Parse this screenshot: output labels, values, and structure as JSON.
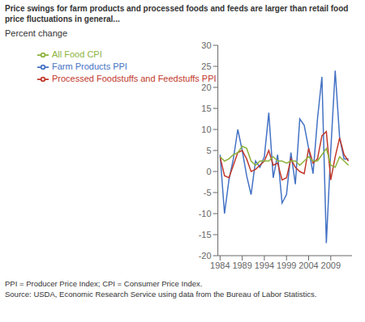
{
  "chart_data": {
    "type": "line",
    "title": "Price swings for farm products and processed foods and feeds are larger than retail food",
    "subtitle": "price fluctuations in general...",
    "y_label": "Percent change",
    "annotations": [
      "PPI = Producer Price Index; CPI = Consumer Price Index.",
      "Source: USDA, Economic Research Service using data from the Bureau of Labor Statistics."
    ],
    "x": [
      1984,
      1985,
      1986,
      1987,
      1988,
      1989,
      1990,
      1991,
      1992,
      1993,
      1994,
      1995,
      1996,
      1997,
      1998,
      1999,
      2000,
      2001,
      2002,
      2003,
      2004,
      2005,
      2006,
      2007,
      2008,
      2009,
      2010,
      2011,
      2012,
      2013
    ],
    "series": [
      {
        "name": "Farm Products PPI",
        "color": "#4472C4",
        "values": [
          4.0,
          -10.0,
          -2.0,
          3.0,
          10.0,
          5.0,
          -1.0,
          -5.5,
          2.5,
          1.0,
          3.5,
          14.0,
          -1.5,
          4.0,
          -7.5,
          -5.5,
          4.5,
          -3.0,
          12.5,
          11.0,
          5.5,
          -0.5,
          12.5,
          22.5,
          -17.0,
          5.0,
          24.0,
          8.0,
          3.0,
          3.0
        ]
      },
      {
        "name": "Processed Foodstuffs and Feedstuffs PPI",
        "color": "#C0392B",
        "values": [
          3.5,
          -1.0,
          -1.5,
          1.5,
          4.5,
          5.0,
          3.0,
          0.0,
          0.5,
          1.5,
          2.5,
          5.0,
          1.5,
          2.0,
          -2.0,
          -1.5,
          3.0,
          1.0,
          0.0,
          -0.5,
          5.5,
          2.0,
          3.0,
          8.5,
          9.5,
          -2.0,
          3.5,
          8.0,
          4.0,
          2.5
        ]
      },
      {
        "name": "All Food CPI",
        "color": "#8DB33A",
        "values": [
          3.5,
          2.5,
          3.0,
          4.0,
          4.5,
          6.0,
          5.5,
          2.5,
          1.5,
          2.5,
          2.5,
          2.5,
          3.5,
          2.5,
          2.5,
          2.0,
          2.5,
          2.5,
          1.5,
          2.5,
          3.5,
          2.5,
          2.5,
          4.0,
          5.5,
          1.5,
          1.0,
          3.5,
          2.5,
          1.5
        ]
      }
    ],
    "xlim": [
      1983.5,
      2013.8
    ],
    "xticks": [
      1984,
      1989,
      1994,
      1999,
      2004,
      2009
    ],
    "ylim": [
      -20,
      30
    ],
    "yticks": [
      -20,
      -15,
      -10,
      -5,
      0,
      5,
      10,
      15,
      20,
      25,
      30
    ],
    "grid": false,
    "legend": "upper left"
  }
}
